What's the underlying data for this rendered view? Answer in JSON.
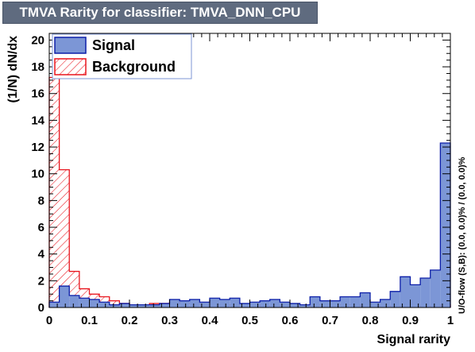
{
  "title": "TMVA Rarity for classifier: TMVA_DNN_CPU",
  "chart_data": {
    "type": "bar",
    "xlabel": "Signal rarity",
    "ylabel": "(1/N) dN/dx",
    "side_label": "U/O-flow (S,B): (0.0, 0.0)% / (0.0, 0.0)%",
    "xlim": [
      0,
      1
    ],
    "ylim": [
      0,
      20.5
    ],
    "x_ticks": [
      "0",
      "0.1",
      "0.2",
      "0.3",
      "0.4",
      "0.5",
      "0.6",
      "0.7",
      "0.8",
      "0.9",
      "1"
    ],
    "y_ticks": [
      "0",
      "2",
      "4",
      "6",
      "8",
      "10",
      "12",
      "14",
      "16",
      "18",
      "20"
    ],
    "bins": 40,
    "legend_position": "top-left",
    "series": [
      {
        "name": "Signal",
        "fill": "#7c96d6",
        "stroke": "#0b1ea8",
        "style": "solid",
        "values": [
          0.4,
          1.6,
          0.9,
          0.7,
          0.6,
          0.4,
          0.2,
          0.3,
          0.2,
          0.2,
          0.2,
          0.3,
          0.6,
          0.5,
          0.6,
          0.4,
          0.7,
          0.6,
          0.7,
          0.3,
          0.4,
          0.5,
          0.6,
          0.4,
          0.3,
          0.2,
          0.8,
          0.5,
          0.5,
          0.8,
          0.8,
          1.1,
          0.4,
          0.6,
          1.2,
          2.3,
          1.7,
          2.2,
          2.8,
          12.3
        ]
      },
      {
        "name": "Background",
        "fill": "none",
        "stroke": "#e8141d",
        "style": "hatched",
        "values": [
          17.2,
          10.3,
          2.7,
          1.4,
          1.0,
          0.8,
          0.5,
          0.3,
          0.2,
          0.2,
          0.3,
          0.3,
          0.4,
          0.3,
          0.3,
          0.3,
          0.2,
          0.2,
          0.2,
          0.2,
          0.2,
          0.1,
          0.1,
          0.1,
          0.1,
          0.1,
          0.2,
          0.2,
          0.2,
          0.2,
          0.2,
          0.1,
          0.1,
          0.1,
          0.1,
          0.1,
          0.1,
          0.1,
          0.1,
          0.2
        ]
      }
    ]
  }
}
